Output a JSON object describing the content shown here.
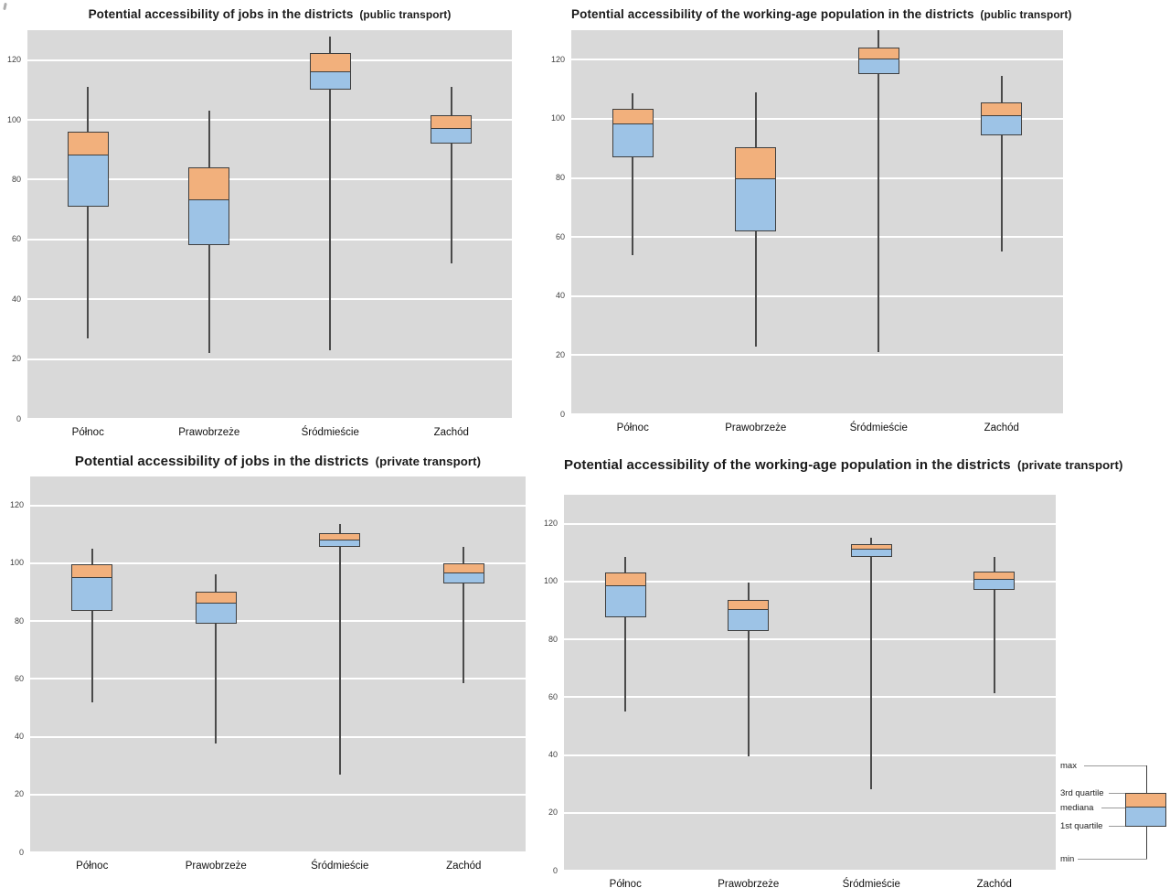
{
  "colors": {
    "box_upper_fill": "#F2B07C",
    "box_lower_fill": "#9DC3E6",
    "box_border": "#3F3F3F",
    "whisker": "#4A4A4A",
    "plot_background": "#D9D9D9",
    "gridline": "#FFFFFF"
  },
  "legend": {
    "max_label": "max",
    "q3_label": "3rd quartile",
    "median_label": "mediana",
    "q1_label": "1st quartile",
    "min_label": "min"
  },
  "chart_data": [
    {
      "type": "boxplot",
      "title": "Potential accessibility of jobs in the districts",
      "title_suffix": "(public transport)",
      "categories": [
        "Północ",
        "Prawobrzeże",
        "Śródmieście",
        "Zachód"
      ],
      "yticks": [
        0,
        20,
        40,
        60,
        80,
        100,
        120
      ],
      "ylim": [
        0,
        130
      ],
      "grid": true,
      "series": [
        {
          "name": "Północ",
          "min": 27,
          "q1": 71,
          "median": 88,
          "q3": 96,
          "max": 111
        },
        {
          "name": "Prawobrzeże",
          "min": 22,
          "q1": 58,
          "median": 73,
          "q3": 84,
          "max": 103
        },
        {
          "name": "Śródmieście",
          "min": 23,
          "q1": 110,
          "median": 116,
          "q3": 122.5,
          "max": 128
        },
        {
          "name": "Zachód",
          "min": 52,
          "q1": 92,
          "median": 97,
          "q3": 101.5,
          "max": 111
        }
      ]
    },
    {
      "type": "boxplot",
      "title": "Potential accessibility of the working-age population in the districts",
      "title_suffix": "(public transport)",
      "categories": [
        "Północ",
        "Prawobrzeże",
        "Śródmieście",
        "Zachód"
      ],
      "yticks": [
        0,
        20,
        40,
        60,
        80,
        100,
        120
      ],
      "ylim": [
        0,
        130
      ],
      "grid": true,
      "series": [
        {
          "name": "Północ",
          "min": 54,
          "q1": 87,
          "median": 98,
          "q3": 103.5,
          "max": 108.5
        },
        {
          "name": "Prawobrzeże",
          "min": 23,
          "q1": 62,
          "median": 79.5,
          "q3": 90.5,
          "max": 109
        },
        {
          "name": "Śródmieście",
          "min": 21,
          "q1": 115,
          "median": 120,
          "q3": 124,
          "max": 130
        },
        {
          "name": "Zachód",
          "min": 55,
          "q1": 94.5,
          "median": 101,
          "q3": 105.5,
          "max": 114.5
        }
      ]
    },
    {
      "type": "boxplot",
      "title": "Potential accessibility of jobs in the districts",
      "title_suffix": "(private transport)",
      "categories": [
        "Północ",
        "Prawobrzeże",
        "Śródmieście",
        "Zachód"
      ],
      "yticks": [
        0,
        20,
        40,
        60,
        80,
        100,
        120
      ],
      "ylim": [
        0,
        130
      ],
      "grid": true,
      "series": [
        {
          "name": "Północ",
          "min": 52,
          "q1": 83.5,
          "median": 95,
          "q3": 99.5,
          "max": 105
        },
        {
          "name": "Prawobrzeże",
          "min": 37.5,
          "q1": 79,
          "median": 86,
          "q3": 90,
          "max": 96
        },
        {
          "name": "Śródmieście",
          "min": 27,
          "q1": 105.5,
          "median": 108,
          "q3": 110.5,
          "max": 113.5
        },
        {
          "name": "Zachód",
          "min": 58.5,
          "q1": 93,
          "median": 96.5,
          "q3": 100,
          "max": 105.5
        }
      ]
    },
    {
      "type": "boxplot",
      "title": "Potential accessibility of the working-age population in the districts",
      "title_suffix": "(private transport)",
      "categories": [
        "Północ",
        "Prawobrzeże",
        "Śródmieście",
        "Zachód"
      ],
      "yticks": [
        0,
        20,
        40,
        60,
        80,
        100,
        120
      ],
      "ylim": [
        0,
        130
      ],
      "grid": true,
      "series": [
        {
          "name": "Północ",
          "min": 55,
          "q1": 87.5,
          "median": 98.5,
          "q3": 103,
          "max": 108.5
        },
        {
          "name": "Prawobrzeże",
          "min": 39.5,
          "q1": 83,
          "median": 90,
          "q3": 93.5,
          "max": 99.5
        },
        {
          "name": "Śródmieście",
          "min": 28,
          "q1": 108.5,
          "median": 111,
          "q3": 113,
          "max": 115
        },
        {
          "name": "Zachód",
          "min": 61.5,
          "q1": 97,
          "median": 100.5,
          "q3": 103.5,
          "max": 108.5
        }
      ]
    }
  ]
}
